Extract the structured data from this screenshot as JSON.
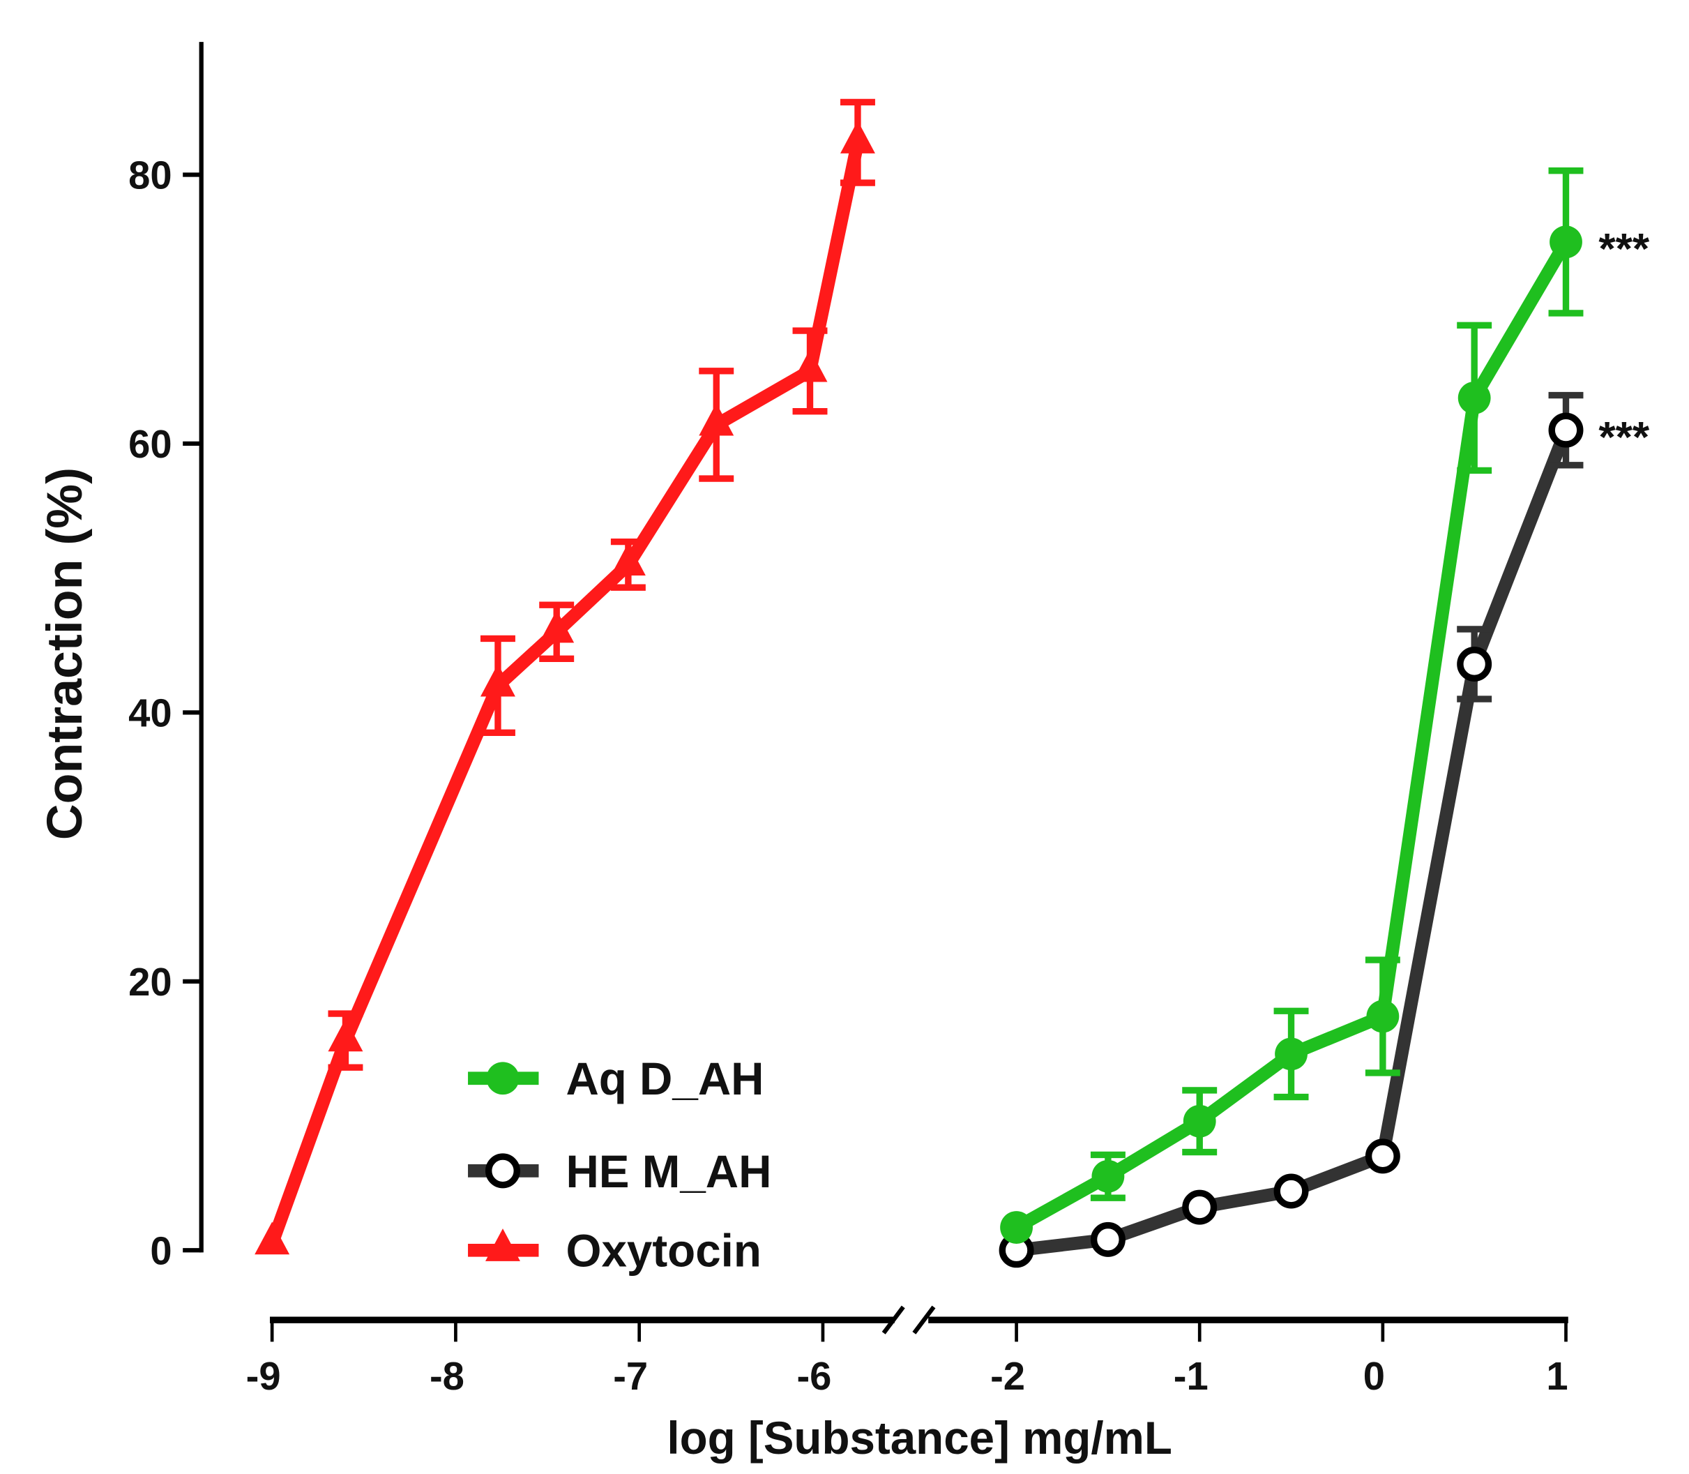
{
  "chart_data": {
    "type": "line",
    "title": "",
    "xlabel": "log [Substance] mg/mL",
    "ylabel": "Contraction (%)",
    "ylim": [
      0,
      90
    ],
    "yticks": [
      "0",
      "20",
      "40",
      "60",
      "80"
    ],
    "x_axis_broken": true,
    "x_segments": [
      {
        "range": [
          -9,
          -5.6
        ],
        "ticks": [
          "-9",
          "-8",
          "-7",
          "-6"
        ]
      },
      {
        "range": [
          -2,
          1
        ],
        "ticks": [
          "-2",
          "-1",
          "0",
          "1"
        ]
      }
    ],
    "grid": false,
    "legend_position": "bottom-left",
    "series": [
      {
        "name": "Aq D_AH",
        "color": "#1fbf1f",
        "marker": "filled-circle",
        "segment": 1,
        "x": [
          -2,
          -1.5,
          -1,
          -0.5,
          0,
          0.5,
          1
        ],
        "y": [
          1.7,
          5.5,
          9.6,
          14.6,
          17.4,
          63.4,
          75
        ],
        "err": [
          0,
          1.6,
          2.3,
          3.2,
          4.2,
          5.4,
          5.3
        ]
      },
      {
        "name": "HE M_AH",
        "color": "#333333",
        "marker": "open-circle",
        "segment": 1,
        "x": [
          -2,
          -1.5,
          -1,
          -0.5,
          0,
          0.5,
          1
        ],
        "y": [
          0,
          0.8,
          3.2,
          4.4,
          7,
          43.6,
          61
        ],
        "err": [
          0,
          0,
          0,
          0,
          0,
          2.6,
          2.6
        ]
      },
      {
        "name": "Oxytocin",
        "color": "#ff1a1a",
        "marker": "triangle",
        "segment": 0,
        "x": [
          -9,
          -8.6,
          -7.77,
          -7.45,
          -7.06,
          -6.58,
          -6.07,
          -5.81
        ],
        "y": [
          0.5,
          15.6,
          42,
          46,
          51,
          61.4,
          65.4,
          82.4
        ],
        "err": [
          0,
          2,
          3.5,
          2,
          1.7,
          4,
          3,
          3
        ]
      }
    ],
    "annotations": [
      {
        "text": "***",
        "series": "Aq D_AH",
        "x": 1
      },
      {
        "text": "***",
        "series": "HE M_AH",
        "x": 1
      }
    ]
  }
}
